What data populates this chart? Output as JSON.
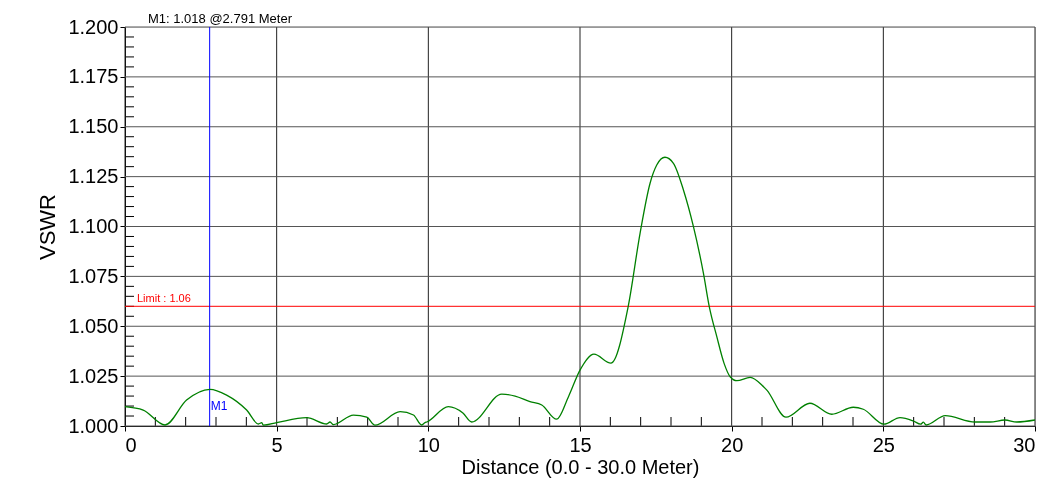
{
  "chart_data": {
    "type": "line",
    "xlabel": "Distance (0.0 - 30.0 Meter)",
    "ylabel": "VSWR",
    "xlim": [
      0,
      30
    ],
    "ylim": [
      1.0,
      1.2
    ],
    "xticks": [
      0,
      {
        "value": 1,
        "label": null
      },
      {
        "value": 2,
        "label": null
      },
      {
        "value": 3,
        "label": null
      },
      {
        "value": 4,
        "label": null
      },
      5,
      {
        "value": 6,
        "label": null
      },
      {
        "value": 7,
        "label": null
      },
      {
        "value": 8,
        "label": null
      },
      {
        "value": 9,
        "label": null
      },
      10,
      {
        "value": 11,
        "label": null
      },
      {
        "value": 12,
        "label": null
      },
      {
        "value": 13,
        "label": null
      },
      {
        "value": 14,
        "label": null
      },
      15,
      {
        "value": 16,
        "label": null
      },
      {
        "value": 17,
        "label": null
      },
      {
        "value": 18,
        "label": null
      },
      {
        "value": 19,
        "label": null
      },
      20,
      {
        "value": 21,
        "label": null
      },
      {
        "value": 22,
        "label": null
      },
      {
        "value": 23,
        "label": null
      },
      {
        "value": 24,
        "label": null
      },
      25,
      {
        "value": 26,
        "label": null
      },
      {
        "value": 27,
        "label": null
      },
      {
        "value": 28,
        "label": null
      },
      {
        "value": 29,
        "label": null
      },
      30
    ],
    "yticks": [
      {
        "value": 1.0,
        "label": "1.000"
      },
      {
        "value": 1.005,
        "label": null
      },
      {
        "value": 1.01,
        "label": null
      },
      {
        "value": 1.015,
        "label": null
      },
      {
        "value": 1.02,
        "label": null
      },
      {
        "value": 1.025,
        "label": "1.025"
      },
      {
        "value": 1.03,
        "label": null
      },
      {
        "value": 1.035,
        "label": null
      },
      {
        "value": 1.04,
        "label": null
      },
      {
        "value": 1.045,
        "label": null
      },
      {
        "value": 1.05,
        "label": "1.050"
      },
      {
        "value": 1.055,
        "label": null
      },
      {
        "value": 1.06,
        "label": null
      },
      {
        "value": 1.065,
        "label": null
      },
      {
        "value": 1.07,
        "label": null
      },
      {
        "value": 1.075,
        "label": "1.075"
      },
      {
        "value": 1.08,
        "label": null
      },
      {
        "value": 1.085,
        "label": null
      },
      {
        "value": 1.09,
        "label": null
      },
      {
        "value": 1.095,
        "label": null
      },
      {
        "value": 1.1,
        "label": "1.100"
      },
      {
        "value": 1.105,
        "label": null
      },
      {
        "value": 1.11,
        "label": null
      },
      {
        "value": 1.115,
        "label": null
      },
      {
        "value": 1.12,
        "label": null
      },
      {
        "value": 1.125,
        "label": "1.125"
      },
      {
        "value": 1.13,
        "label": null
      },
      {
        "value": 1.135,
        "label": null
      },
      {
        "value": 1.14,
        "label": null
      },
      {
        "value": 1.145,
        "label": null
      },
      {
        "value": 1.15,
        "label": "1.150"
      },
      {
        "value": 1.155,
        "label": null
      },
      {
        "value": 1.16,
        "label": null
      },
      {
        "value": 1.165,
        "label": null
      },
      {
        "value": 1.17,
        "label": null
      },
      {
        "value": 1.175,
        "label": "1.175"
      },
      {
        "value": 1.18,
        "label": null
      },
      {
        "value": 1.185,
        "label": null
      },
      {
        "value": 1.19,
        "label": null
      },
      {
        "value": 1.195,
        "label": null
      },
      {
        "value": 1.2,
        "label": "1.200"
      }
    ],
    "grid": true,
    "series": [
      {
        "color": "#008000",
        "x": [
          0,
          0.6,
          1.32,
          2.03,
          2.8,
          3.35,
          4.01,
          4.4,
          4.51,
          4.56,
          5.0,
          5.99,
          6.65,
          6.76,
          6.87,
          7.53,
          7.97,
          8.24,
          9.07,
          9.51,
          9.78,
          9.89,
          9.95,
          10.66,
          11.14,
          11.43,
          12.42,
          12.86,
          13.35,
          13.74,
          14.23,
          14.62,
          15.0,
          15.46,
          16.02,
          16.59,
          16.98,
          17.31,
          17.53,
          17.8,
          18.08,
          18.41,
          18.74,
          19.07,
          19.26,
          19.51,
          19.75,
          19.95,
          20.17,
          20.61,
          21.05,
          21.16,
          21.79,
          22.58,
          23.3,
          24.01,
          24.34,
          25.02,
          25.55,
          25.99,
          26.23,
          26.32,
          26.41,
          27.04,
          28.02,
          28.52,
          29.01,
          29.4,
          30
        ],
        "values": [
          1.0097,
          1.008,
          1.0005,
          1.013,
          1.0184,
          1.0155,
          1.008,
          1.001,
          1.0017,
          1.0004,
          1.0017,
          1.0042,
          1.001,
          1.002,
          1.0007,
          1.0055,
          1.0044,
          1.0004,
          1.0072,
          1.0055,
          1.0005,
          1.0017,
          1.002,
          1.0097,
          1.0065,
          1.002,
          1.016,
          1.015,
          1.0122,
          1.0105,
          1.0034,
          1.0147,
          1.028,
          1.036,
          1.0315,
          1.06,
          1.0966,
          1.1217,
          1.1308,
          1.1347,
          1.1317,
          1.1183,
          1.0999,
          1.0765,
          1.06,
          1.0448,
          1.0314,
          1.0247,
          1.0227,
          1.0244,
          1.0197,
          1.018,
          1.0044,
          1.0114,
          1.0059,
          1.0094,
          1.0084,
          1.0009,
          1.0042,
          1.0025,
          1.0009,
          1.0019,
          1.0005,
          1.0052,
          1.002,
          1.002,
          1.003,
          1.002,
          1.003
        ]
      }
    ],
    "ref_lines": [
      {
        "axis": "y",
        "value": 1.06,
        "label": "Limit : 1.06",
        "color": "#ff0000"
      },
      {
        "axis": "x",
        "value": 2.791,
        "label": "M1",
        "color": "#0000ff"
      }
    ],
    "annotations": [
      "M1: 1.018 @2.791 Meter"
    ]
  }
}
